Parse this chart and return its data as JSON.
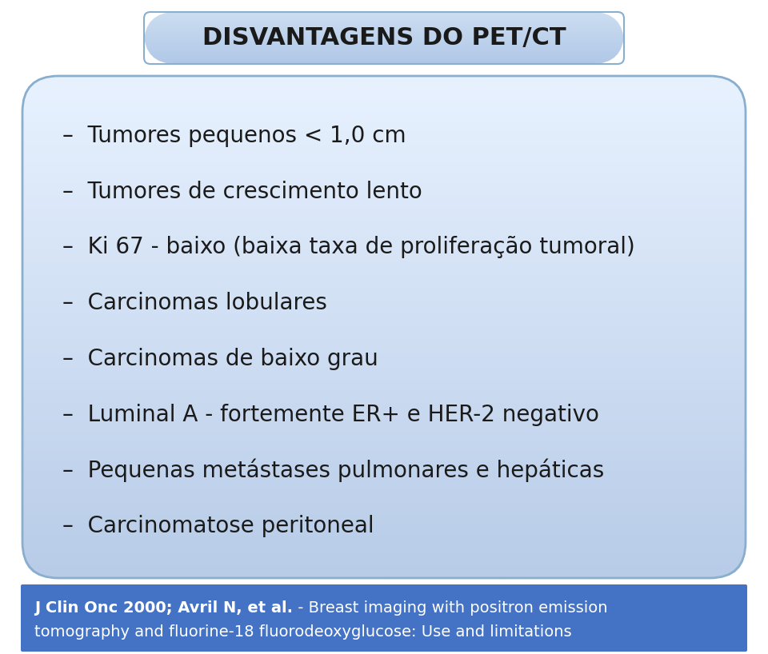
{
  "title": "DISVANTAGENS DO PET/CT",
  "title_box_bg_top": "#ccddf0",
  "title_box_bg_bottom": "#b0c8e8",
  "title_box_border": "#8aaece",
  "title_fontsize": 22,
  "title_fontweight": "bold",
  "main_bg": "#ffffff",
  "bullet_box_bg_top": "#e8f2ff",
  "bullet_box_bg_bottom": "#b8cce8",
  "bullet_box_border": "#8aaece",
  "bullets": [
    "–  Tumores pequenos < 1,0 cm",
    "–  Tumores de crescimento lento",
    "–  Ki 67 - baixo (baixa taxa de proliferação tumoral)",
    "–  Carcinomas lobulares",
    "–  Carcinomas de baixo grau",
    "–  Luminal A - fortemente ER+ e HER-2 negativo",
    "–  Pequenas metástases pulmonares e hepáticas",
    "–  Carcinomatose peritoneal"
  ],
  "bullet_fontsize": 20,
  "bullet_color": "#1a1a1a",
  "footer_bg": "#4472c4",
  "footer_bold_text": "J Clin Onc 2000; Avril N, et al.",
  "footer_normal_text_line1": " - Breast imaging with positron emission",
  "footer_normal_text_line2": "tomography and fluorine-18 fluorodeoxyglucose: Use and limitations",
  "footer_fontsize": 14,
  "footer_text_color": "#ffffff",
  "fig_w": 9.6,
  "fig_h": 8.18,
  "dpi": 100
}
